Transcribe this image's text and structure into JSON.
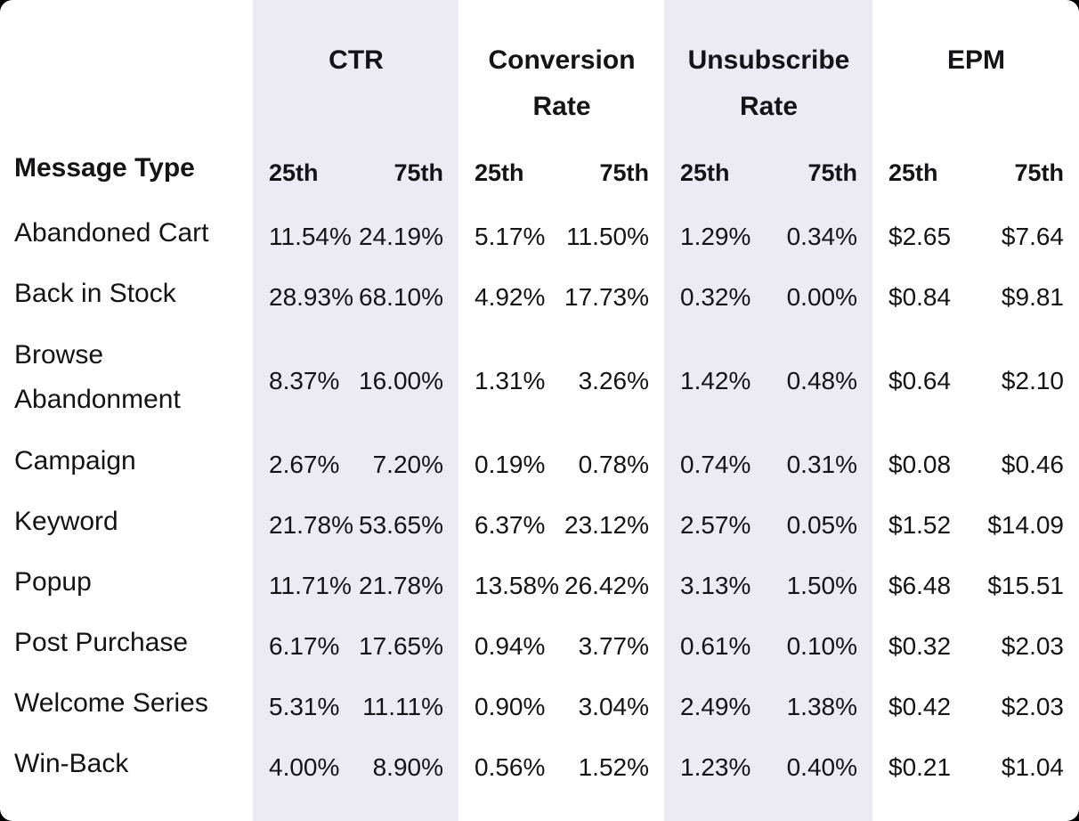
{
  "colors": {
    "band": "#ECEBF3",
    "text": "#141418",
    "table_bg": "#FFFFFF",
    "behind": "#000000"
  },
  "chart_data": {
    "type": "table",
    "row_header": "Message Type",
    "column_groups": [
      "CTR",
      "Conversion Rate",
      "Unsubscribe Rate",
      "EPM"
    ],
    "percentiles": [
      "25th",
      "75th"
    ],
    "columns": [
      "CTR 25th",
      "CTR 75th",
      "Conversion Rate 25th",
      "Conversion Rate 75th",
      "Unsubscribe Rate 25th",
      "Unsubscribe Rate 75th",
      "EPM 25th",
      "EPM 75th"
    ],
    "rows": [
      {
        "label": "Abandoned Cart",
        "cells": [
          "11.54%",
          "24.19%",
          "5.17%",
          "11.50%",
          "1.29%",
          "0.34%",
          "$2.65",
          "$7.64"
        ]
      },
      {
        "label": "Back in Stock",
        "cells": [
          "28.93%",
          "68.10%",
          "4.92%",
          "17.73%",
          "0.32%",
          "0.00%",
          "$0.84",
          "$9.81"
        ]
      },
      {
        "label": "Browse Abandonment",
        "cells": [
          "8.37%",
          "16.00%",
          "1.31%",
          "3.26%",
          "1.42%",
          "0.48%",
          "$0.64",
          "$2.10"
        ]
      },
      {
        "label": "Campaign",
        "cells": [
          "2.67%",
          "7.20%",
          "0.19%",
          "0.78%",
          "0.74%",
          "0.31%",
          "$0.08",
          "$0.46"
        ]
      },
      {
        "label": "Keyword",
        "cells": [
          "21.78%",
          "53.65%",
          "6.37%",
          "23.12%",
          "2.57%",
          "0.05%",
          "$1.52",
          "$14.09"
        ]
      },
      {
        "label": "Popup",
        "cells": [
          "11.71%",
          "21.78%",
          "13.58%",
          "26.42%",
          "3.13%",
          "1.50%",
          "$6.48",
          "$15.51"
        ]
      },
      {
        "label": "Post Purchase",
        "cells": [
          "6.17%",
          "17.65%",
          "0.94%",
          "3.77%",
          "0.61%",
          "0.10%",
          "$0.32",
          "$2.03"
        ]
      },
      {
        "label": "Welcome Series",
        "cells": [
          "5.31%",
          "11.11%",
          "0.90%",
          "3.04%",
          "2.49%",
          "1.38%",
          "$0.42",
          "$2.03"
        ]
      },
      {
        "label": "Win-Back",
        "cells": [
          "4.00%",
          "8.90%",
          "0.56%",
          "1.52%",
          "1.23%",
          "0.40%",
          "$0.21",
          "$1.04"
        ]
      }
    ]
  }
}
